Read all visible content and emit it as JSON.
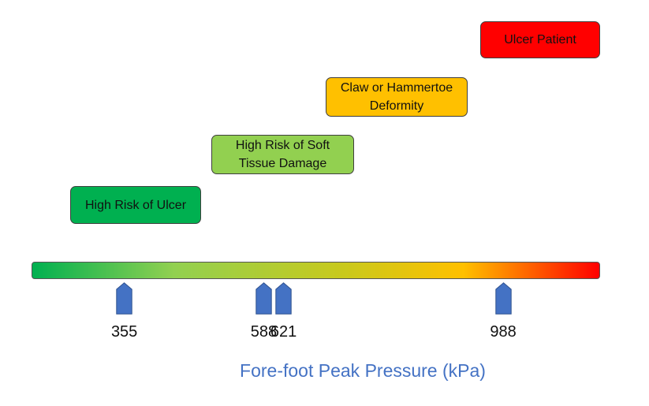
{
  "scale": {
    "min": 200,
    "max": 1150,
    "gradient_colors": [
      "#00b050",
      "#92d050",
      "#c9c91c",
      "#ffc000",
      "#ff0000"
    ]
  },
  "categories": [
    {
      "label": "High Risk of Ulcer",
      "color": "#00b050"
    },
    {
      "label": "High Risk of Soft\nTissue Damage",
      "color": "#92d050"
    },
    {
      "label": "Claw or Hammertoe\nDeformity",
      "color": "#ffc000"
    },
    {
      "label": "Ulcer Patient",
      "color": "#ff0000"
    }
  ],
  "thresholds": [
    355,
    588,
    621,
    988
  ],
  "marker_color": "#4472c4",
  "axis_title": "Fore-foot Peak Pressure (kPa)"
}
